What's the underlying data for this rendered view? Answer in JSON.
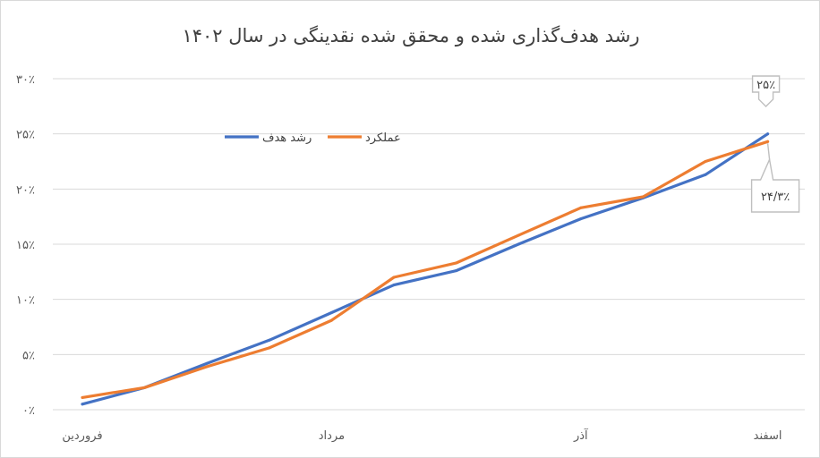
{
  "chart_data": {
    "type": "line",
    "title": "رشد هدف‌گذاری شده و محقق شده نقدینگی در سال ۱۴۰۲",
    "xlabel": "",
    "ylabel": "",
    "ylim": [
      0,
      30
    ],
    "y_ticks": [
      {
        "value": 0,
        "label": "۰٪"
      },
      {
        "value": 5,
        "label": "۵٪"
      },
      {
        "value": 10,
        "label": "۱۰٪"
      },
      {
        "value": 15,
        "label": "۱۵٪"
      },
      {
        "value": 20,
        "label": "۲۰٪"
      },
      {
        "value": 25,
        "label": "۲۵٪"
      },
      {
        "value": 30,
        "label": "۳۰٪"
      }
    ],
    "x_tick_labels": [
      {
        "index": 0,
        "label": "فروردین"
      },
      {
        "index": 4,
        "label": "مرداد"
      },
      {
        "index": 8,
        "label": "آذر"
      },
      {
        "index": 11,
        "label": "اسفند"
      }
    ],
    "x_count": 12,
    "grid": true,
    "legend_position": "top-center",
    "series": [
      {
        "name": "رشد هدف",
        "color": "#4472C4",
        "values": [
          0.5,
          2.0,
          4.2,
          6.3,
          8.8,
          11.3,
          12.6,
          15.0,
          17.3,
          19.2,
          21.3,
          25.0
        ]
      },
      {
        "name": "عملکرد",
        "color": "#ED7D31",
        "values": [
          1.1,
          2.0,
          3.9,
          5.6,
          8.1,
          12.0,
          13.3,
          15.8,
          18.3,
          19.3,
          22.5,
          24.3
        ]
      }
    ],
    "annotations": [
      {
        "series": 0,
        "index": 11,
        "label": "۲۵٪",
        "placement": "above"
      },
      {
        "series": 1,
        "index": 11,
        "label": "۲۴/۳٪",
        "placement": "below"
      }
    ]
  }
}
